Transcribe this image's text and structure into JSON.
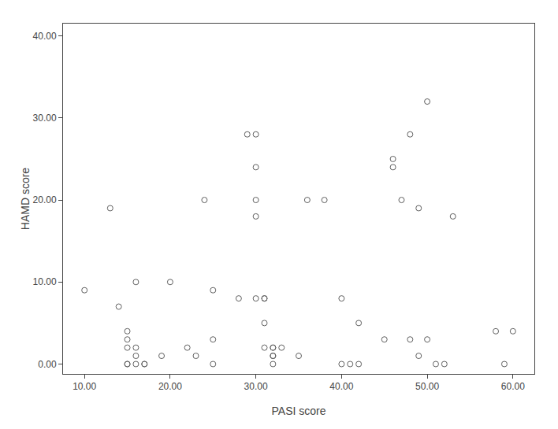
{
  "chart_data": {
    "type": "scatter",
    "x": [
      10,
      13,
      14,
      15,
      15,
      15,
      15,
      15,
      16,
      16,
      16,
      16,
      17,
      17,
      19,
      20,
      22,
      23,
      24,
      25,
      25,
      25,
      28,
      29,
      30,
      30,
      30,
      30,
      30,
      31,
      31,
      31,
      31,
      32,
      32,
      32,
      32,
      32,
      33,
      35,
      36,
      38,
      40,
      40,
      41,
      42,
      42,
      45,
      46,
      46,
      47,
      48,
      48,
      49,
      49,
      50,
      50,
      51,
      52,
      53,
      58,
      59,
      60
    ],
    "values": [
      9,
      19,
      7,
      4,
      3,
      2,
      0,
      0,
      10,
      2,
      1,
      0,
      0,
      0,
      1,
      10,
      2,
      1,
      20,
      9,
      3,
      0,
      8,
      28,
      28,
      24,
      20,
      18,
      8,
      8,
      8,
      5,
      2,
      2,
      2,
      1,
      1,
      0,
      2,
      1,
      20,
      20,
      8,
      0,
      0,
      5,
      0,
      3,
      25,
      24,
      20,
      28,
      3,
      19,
      1,
      32,
      3,
      0,
      0,
      18,
      4,
      0,
      4
    ],
    "xlabel": "PASI score",
    "ylabel": "HAMD score",
    "xlim": [
      7.5,
      62.5
    ],
    "ylim": [
      -1.2,
      41.5
    ],
    "xticks": [
      {
        "value": 10,
        "label": "10.00"
      },
      {
        "value": 20,
        "label": "20.00"
      },
      {
        "value": 30,
        "label": "30.00"
      },
      {
        "value": 40,
        "label": "40.00"
      },
      {
        "value": 50,
        "label": "50.00"
      },
      {
        "value": 60,
        "label": "60.00"
      }
    ],
    "yticks": [
      {
        "value": 0,
        "label": "0.00"
      },
      {
        "value": 10,
        "label": "10.00"
      },
      {
        "value": 20,
        "label": "20.00"
      },
      {
        "value": 30,
        "label": "30.00"
      },
      {
        "value": 40,
        "label": "40.00"
      }
    ],
    "color": "#606060",
    "marker": "circle-open",
    "grid": false
  }
}
